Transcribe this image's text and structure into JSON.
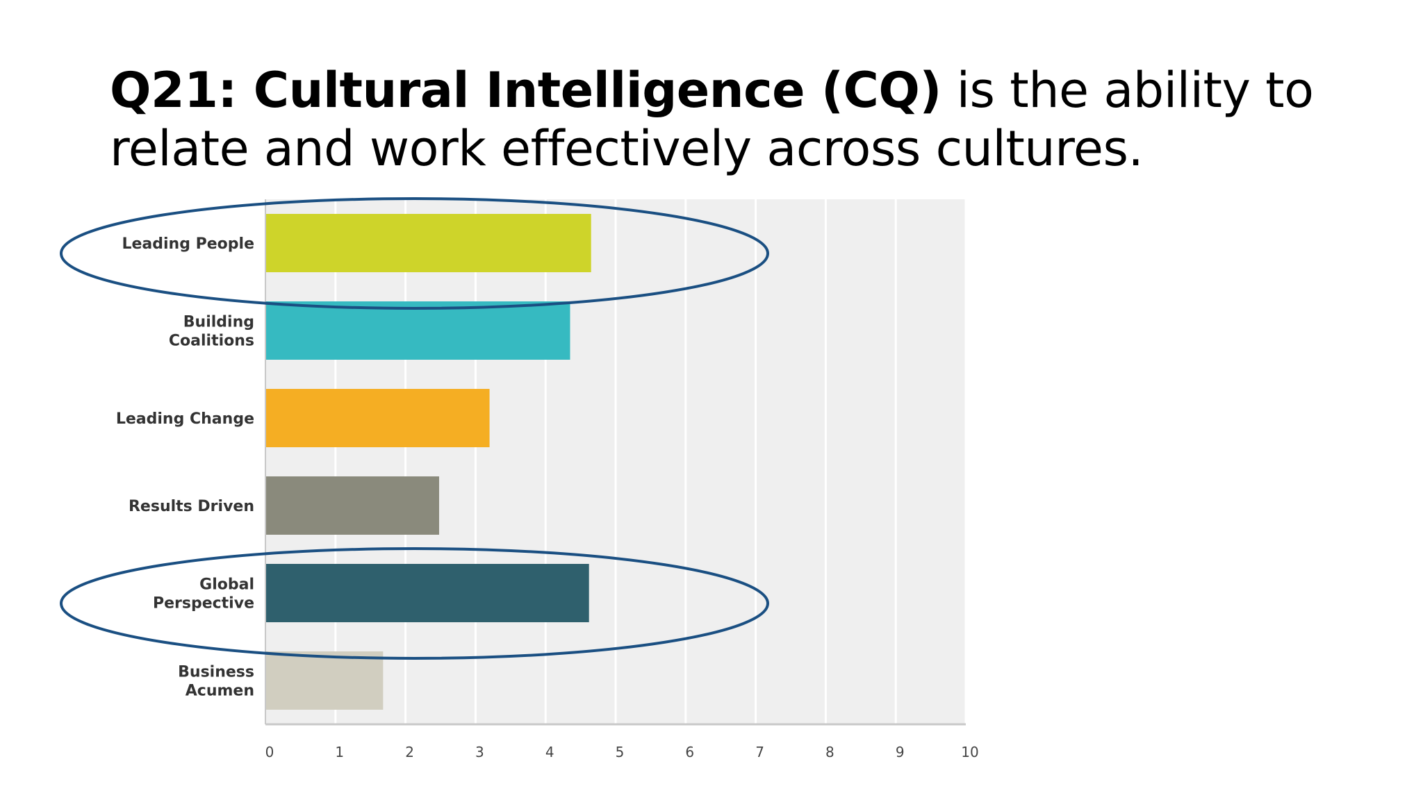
{
  "slide": {
    "title_bold": "Q21: Cultural Intelligence (CQ)",
    "title_rest": " is the ability to relate and work effectively across cultures."
  },
  "chart_data": {
    "type": "bar",
    "orientation": "horizontal",
    "categories": [
      [
        "Leading People"
      ],
      [
        "Building",
        "Coalitions"
      ],
      [
        "Leading Change"
      ],
      [
        "Results Driven"
      ],
      [
        "Global",
        "Perspective"
      ],
      [
        "Business",
        "Acumen"
      ]
    ],
    "values": [
      4.65,
      4.35,
      3.2,
      2.48,
      4.62,
      1.68
    ],
    "colors": [
      "#ced42a",
      "#36bac1",
      "#f5ae23",
      "#8a8a7c",
      "#2f606d",
      "#d1cec0"
    ],
    "xlim": [
      0,
      10
    ],
    "xticks": [
      "0",
      "1",
      "2",
      "3",
      "4",
      "5",
      "6",
      "7",
      "8",
      "9",
      "10"
    ],
    "grid": true,
    "highlighted": [
      0,
      4
    ],
    "highlight_color": "#1a4f82",
    "plot_background": "#efefef"
  }
}
